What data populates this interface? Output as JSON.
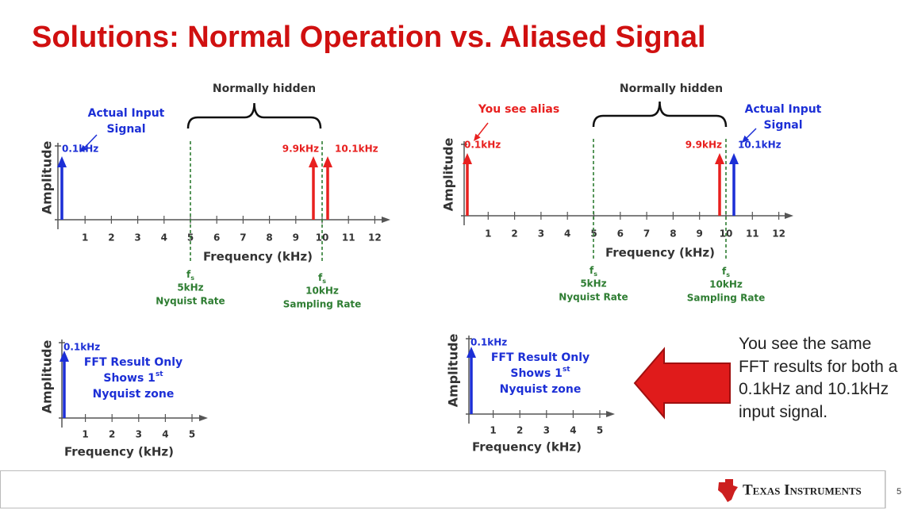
{
  "title": "Solutions:  Normal Operation vs. Aliased Signal",
  "panels": [
    {
      "hidden_label": "Normally hidden",
      "callouts": [
        [
          "Actual Input",
          "Signal"
        ]
      ],
      "peak_labels": [
        "0.1kHz",
        "9.9kHz",
        "10.1kHz"
      ],
      "y_axis": "Amplitude",
      "x_axis": "Frequency (kHz)",
      "x_ticks": [
        "1",
        "2",
        "3",
        "4",
        "5",
        "6",
        "7",
        "8",
        "9",
        "10",
        "11",
        "12"
      ],
      "markers": [
        {
          "symbol": "f",
          "sub": "s",
          "lines": [
            "5kHz",
            "Nyquist Rate"
          ]
        },
        {
          "symbol": "f",
          "sub": "s",
          "lines": [
            "10kHz",
            "Sampling Rate"
          ]
        }
      ]
    },
    {
      "hidden_label": "Normally hidden",
      "callouts": [
        [
          "You see alias"
        ],
        [
          "Actual Input",
          "Signal"
        ]
      ],
      "peak_labels": [
        "0.1kHz",
        "9.9kHz",
        "10.1kHz"
      ],
      "y_axis": "Amplitude",
      "x_axis": "Frequency (kHz)",
      "x_ticks": [
        "1",
        "2",
        "3",
        "4",
        "5",
        "6",
        "7",
        "8",
        "9",
        "10",
        "11",
        "12"
      ],
      "markers": [
        {
          "symbol": "f",
          "sub": "s",
          "lines": [
            "5kHz",
            "Nyquist Rate"
          ]
        },
        {
          "symbol": "f",
          "sub": "s",
          "lines": [
            "10kHz",
            "Sampling Rate"
          ]
        }
      ]
    },
    {
      "peak_labels": [
        "0.1kHz"
      ],
      "note": [
        "FFT Result Only",
        "Shows  1",
        "Nyquist zone"
      ],
      "note_sup": "st",
      "y_axis": "Amplitude",
      "x_axis": "Frequency (kHz)",
      "x_ticks": [
        "1",
        "2",
        "3",
        "4",
        "5"
      ]
    },
    {
      "peak_labels": [
        "0.1kHz"
      ],
      "note": [
        "FFT Result Only",
        "Shows  1",
        "Nyquist zone"
      ],
      "note_sup": "st",
      "y_axis": "Amplitude",
      "x_axis": "Frequency (kHz)",
      "x_ticks": [
        "1",
        "2",
        "3",
        "4",
        "5"
      ]
    }
  ],
  "side_note": "You see the same FFT results for both a 0.1kHz and 10.1kHz input signal.",
  "footer": {
    "brand": "Texas Instruments",
    "page": "5"
  }
}
